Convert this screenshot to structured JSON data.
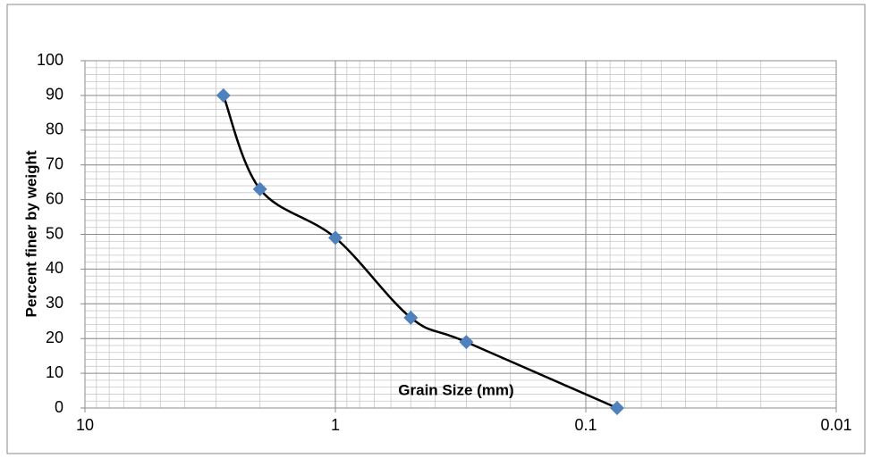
{
  "chart_data": {
    "type": "scatter-line",
    "x_label": "Grain Size (mm)",
    "y_label": "Percent finer by weight",
    "x": [
      2.8,
      2,
      1,
      0.5,
      0.3,
      0.075
    ],
    "series": [
      {
        "color": "#4f81bd",
        "line_color": "#000000",
        "values": [
          90,
          63,
          49,
          26,
          19,
          0
        ]
      }
    ],
    "x_log": true,
    "xlim": [
      10,
      0.01
    ],
    "xticks": [
      10,
      1,
      0.1,
      0.01
    ],
    "ylim": [
      0,
      100
    ],
    "yticks": [
      0,
      10,
      20,
      30,
      40,
      50,
      60,
      70,
      80,
      90,
      100
    ],
    "grid": true,
    "minor_grid": true,
    "smooth": true
  }
}
